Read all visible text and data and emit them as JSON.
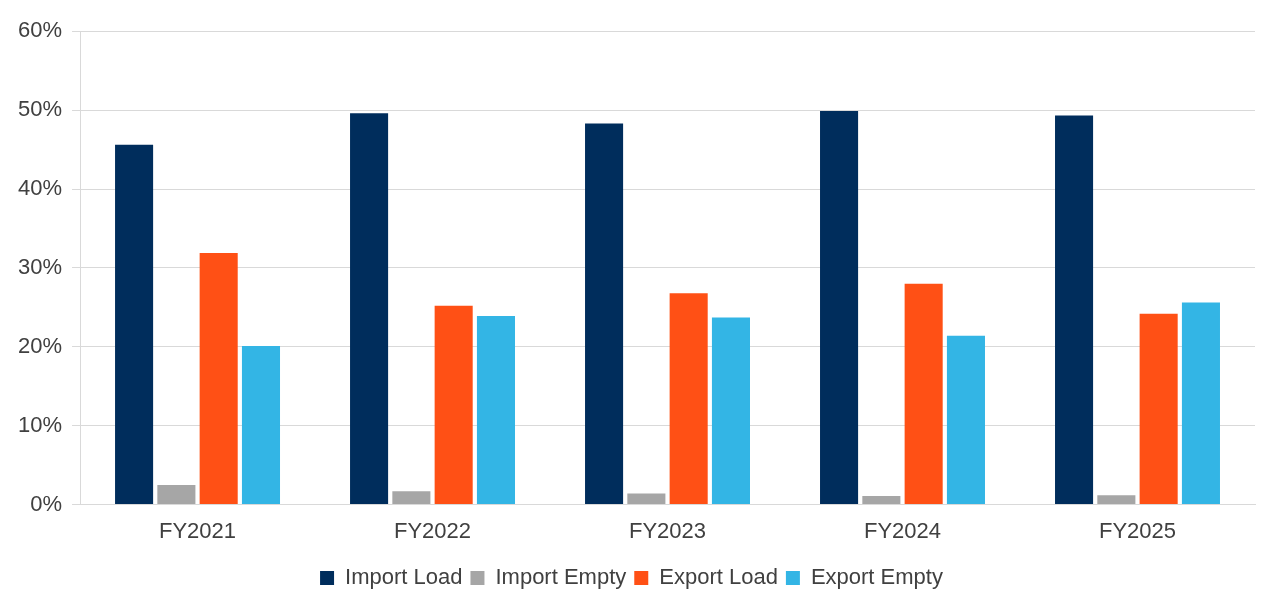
{
  "chart_data": {
    "type": "bar",
    "categories": [
      "FY2021",
      "FY2022",
      "FY2023",
      "FY2024",
      "FY2025"
    ],
    "series": [
      {
        "name": "Import Load",
        "color": "#002d5c",
        "values": [
          45.6,
          49.6,
          48.3,
          49.9,
          49.3
        ]
      },
      {
        "name": "Import Empty",
        "color": "#a6a6a6",
        "values": [
          2.5,
          1.7,
          1.4,
          1.1,
          1.2
        ]
      },
      {
        "name": "Export Load",
        "color": "#ff5015",
        "values": [
          31.9,
          25.2,
          26.8,
          28.0,
          24.2
        ]
      },
      {
        "name": "Export Empty",
        "color": "#33b5e5",
        "values": [
          20.1,
          23.9,
          23.7,
          21.4,
          25.6
        ]
      }
    ],
    "ylim": [
      0,
      60
    ],
    "yticks": [
      {
        "value": 0,
        "label": "0%"
      },
      {
        "value": 10,
        "label": "10%"
      },
      {
        "value": 20,
        "label": "20%"
      },
      {
        "value": 30,
        "label": "30%"
      },
      {
        "value": 40,
        "label": "40%"
      },
      {
        "value": 50,
        "label": "50%"
      },
      {
        "value": 60,
        "label": "60%"
      }
    ],
    "grid": "y",
    "legend": "bottom"
  }
}
